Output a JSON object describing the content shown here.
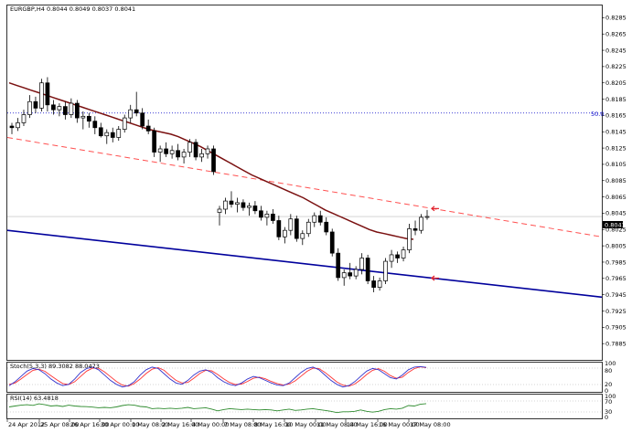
{
  "main_header": "EURGBP,H4  0.8044 0.8049 0.8037 0.8041",
  "stoch_header": "Stoch(5,3,3) 89.3082 88.0473",
  "rsi_header": "RSI(14) 63.4818",
  "fib_label": "50.0",
  "price_badge": "0.8041",
  "colors": {
    "candle": "#000000",
    "ma": "#7a1010",
    "channel_upper": "#ff5050",
    "channel_lower": "#00009c",
    "fib_line": "#0000c8",
    "arrows": "#e0202a",
    "stoch_main": "#3333cc",
    "stoch_signal": "#ff3333",
    "rsi": "#2e8b2e",
    "grid_dots": "#888888"
  },
  "chart_data": {
    "type": "candlestick",
    "symbol": "EURGBP",
    "timeframe": "H4",
    "ylim": [
      0.7865,
      0.83
    ],
    "y_ticks": [
      "0.8285",
      "0.8265",
      "0.8245",
      "0.8225",
      "0.8205",
      "0.8185",
      "0.8165",
      "0.8145",
      "0.8125",
      "0.8105",
      "0.8085",
      "0.8065",
      "0.8045",
      "0.8025",
      "0.8005",
      "0.7985",
      "0.7965",
      "0.7945",
      "0.7925",
      "0.7905",
      "0.7885"
    ],
    "x_ticks": [
      "24 Apr 2012",
      "25 Apr 08:00",
      "26 Apr 16:00",
      "30 Apr 00:00",
      "1 May 08:00",
      "2 May 16:00",
      "4 May 00:00",
      "7 May 08:00",
      "8 May 16:00",
      "10 May 00:00",
      "11 May 08:00",
      "14 May 16:00",
      "16 May 00:00",
      "17 May 08:00"
    ],
    "last_price": 0.8041,
    "fib_level": {
      "label": "50.0",
      "price": 0.8168
    },
    "candles": [
      [
        0.8152,
        0.8156,
        0.8142,
        0.815
      ],
      [
        0.815,
        0.8162,
        0.8146,
        0.8156
      ],
      [
        0.8156,
        0.8172,
        0.8152,
        0.8166
      ],
      [
        0.8166,
        0.819,
        0.8162,
        0.8182
      ],
      [
        0.8182,
        0.8188,
        0.8168,
        0.8174
      ],
      [
        0.8174,
        0.821,
        0.817,
        0.8205
      ],
      [
        0.8205,
        0.8212,
        0.817,
        0.8178
      ],
      [
        0.8178,
        0.8184,
        0.8166,
        0.8172
      ],
      [
        0.8172,
        0.818,
        0.8164,
        0.8176
      ],
      [
        0.8176,
        0.8182,
        0.816,
        0.8166
      ],
      [
        0.8166,
        0.8186,
        0.8162,
        0.818
      ],
      [
        0.818,
        0.8184,
        0.8156,
        0.8162
      ],
      [
        0.8162,
        0.817,
        0.8148,
        0.8164
      ],
      [
        0.8164,
        0.8168,
        0.815,
        0.8158
      ],
      [
        0.8158,
        0.8164,
        0.8142,
        0.815
      ],
      [
        0.815,
        0.8156,
        0.8138,
        0.814
      ],
      [
        0.814,
        0.8148,
        0.813,
        0.8144
      ],
      [
        0.8144,
        0.815,
        0.8132,
        0.8138
      ],
      [
        0.8138,
        0.8152,
        0.8134,
        0.8148
      ],
      [
        0.8148,
        0.8166,
        0.8144,
        0.8162
      ],
      [
        0.8162,
        0.8178,
        0.8156,
        0.8172
      ],
      [
        0.8172,
        0.8194,
        0.8164,
        0.8168
      ],
      [
        0.8168,
        0.8174,
        0.8148,
        0.8152
      ],
      [
        0.8152,
        0.816,
        0.8142,
        0.8146
      ],
      [
        0.8146,
        0.815,
        0.8114,
        0.812
      ],
      [
        0.812,
        0.8128,
        0.8108,
        0.8124
      ],
      [
        0.8124,
        0.8132,
        0.8114,
        0.8118
      ],
      [
        0.8118,
        0.8128,
        0.8112,
        0.8122
      ],
      [
        0.8122,
        0.813,
        0.811,
        0.8114
      ],
      [
        0.8114,
        0.8124,
        0.8106,
        0.812
      ],
      [
        0.812,
        0.8136,
        0.8114,
        0.8132
      ],
      [
        0.8132,
        0.8136,
        0.811,
        0.8114
      ],
      [
        0.8114,
        0.8124,
        0.8108,
        0.8118
      ],
      [
        0.8118,
        0.8128,
        0.8112,
        0.8124
      ],
      [
        0.8124,
        0.8128,
        0.8092,
        0.8096
      ],
      [
        0.8046,
        0.8054,
        0.803,
        0.805
      ],
      [
        0.805,
        0.8064,
        0.8044,
        0.806
      ],
      [
        0.806,
        0.8072,
        0.8052,
        0.8056
      ],
      [
        0.8056,
        0.8064,
        0.8046,
        0.8058
      ],
      [
        0.8058,
        0.8062,
        0.8048,
        0.8052
      ],
      [
        0.8052,
        0.8058,
        0.8042,
        0.8054
      ],
      [
        0.8054,
        0.806,
        0.8044,
        0.8048
      ],
      [
        0.8048,
        0.8054,
        0.8036,
        0.804
      ],
      [
        0.804,
        0.8048,
        0.803,
        0.8044
      ],
      [
        0.8044,
        0.805,
        0.8032,
        0.8036
      ],
      [
        0.8036,
        0.8042,
        0.8012,
        0.8016
      ],
      [
        0.8016,
        0.8028,
        0.8008,
        0.8024
      ],
      [
        0.8024,
        0.8044,
        0.8018,
        0.8038
      ],
      [
        0.8038,
        0.8042,
        0.801,
        0.8014
      ],
      [
        0.8014,
        0.8024,
        0.8006,
        0.802
      ],
      [
        0.802,
        0.8038,
        0.8016,
        0.8034
      ],
      [
        0.8034,
        0.8046,
        0.8028,
        0.8042
      ],
      [
        0.8042,
        0.8048,
        0.803,
        0.8034
      ],
      [
        0.8034,
        0.804,
        0.8018,
        0.8022
      ],
      [
        0.8022,
        0.8026,
        0.7992,
        0.7996
      ],
      [
        0.7996,
        0.8002,
        0.7962,
        0.7966
      ],
      [
        0.7966,
        0.7976,
        0.7956,
        0.7972
      ],
      [
        0.7972,
        0.7984,
        0.7964,
        0.7968
      ],
      [
        0.7968,
        0.798,
        0.7964,
        0.7976
      ],
      [
        0.7976,
        0.7996,
        0.797,
        0.799
      ],
      [
        0.799,
        0.7994,
        0.7958,
        0.7962
      ],
      [
        0.7962,
        0.7968,
        0.7948,
        0.7954
      ],
      [
        0.7954,
        0.7966,
        0.795,
        0.7962
      ],
      [
        0.7962,
        0.799,
        0.7958,
        0.7986
      ],
      [
        0.7986,
        0.8,
        0.7978,
        0.7994
      ],
      [
        0.7994,
        0.7998,
        0.7984,
        0.799
      ],
      [
        0.799,
        0.8004,
        0.7986,
        0.8
      ],
      [
        0.8,
        0.8032,
        0.7996,
        0.8026
      ],
      [
        0.8026,
        0.8036,
        0.8018,
        0.8024
      ],
      [
        0.8024,
        0.8044,
        0.802,
        0.804
      ],
      [
        0.804,
        0.8049,
        0.8037,
        0.8041
      ]
    ],
    "ma_line": [
      0.8205,
      0.8202,
      0.8199,
      0.8196,
      0.8193,
      0.819,
      0.8187,
      0.8184,
      0.8181,
      0.8178,
      0.8175,
      0.8172,
      0.8169,
      0.8166,
      0.8163,
      0.816,
      0.8157,
      0.8154,
      0.8151,
      0.8148,
      0.8146,
      0.8144,
      0.8142,
      0.8139,
      0.8135,
      0.8131,
      0.8127,
      0.8122,
      0.8117,
      0.8112,
      0.8107,
      0.8102,
      0.8097,
      0.8092,
      0.8088,
      0.8084,
      0.808,
      0.8076,
      0.8072,
      0.8068,
      0.8064,
      0.8059,
      0.8054,
      0.8049,
      0.8045,
      0.8041,
      0.8037,
      0.8033,
      0.8029,
      0.8025,
      0.8022,
      0.802,
      0.8018,
      0.8016,
      0.8014,
      0.8013
    ],
    "channel_upper": {
      "start": 0.8138,
      "end": 0.8016
    },
    "channel_lower": {
      "start": 0.8024,
      "end": 0.7942
    },
    "stoch": {
      "header": "Stoch(5,3,3)",
      "main_value": 89.3082,
      "signal_value": 88.0473,
      "levels": [
        80,
        20
      ],
      "y_ticks": [
        "100",
        "80",
        "20",
        "0"
      ],
      "main": [
        20,
        35,
        55,
        75,
        85,
        80,
        65,
        45,
        30,
        20,
        25,
        45,
        70,
        85,
        90,
        80,
        60,
        40,
        25,
        15,
        20,
        35,
        60,
        80,
        90,
        85,
        65,
        45,
        30,
        25,
        40,
        60,
        75,
        80,
        70,
        50,
        35,
        25,
        20,
        30,
        45,
        55,
        50,
        40,
        30,
        22,
        20,
        30,
        50,
        70,
        85,
        90,
        80,
        60,
        40,
        25,
        15,
        20,
        35,
        55,
        75,
        85,
        80,
        65,
        50,
        45,
        60,
        80,
        90,
        92,
        89
      ],
      "signal": [
        25,
        30,
        45,
        62,
        78,
        82,
        74,
        58,
        42,
        28,
        24,
        35,
        55,
        75,
        86,
        86,
        72,
        54,
        36,
        22,
        18,
        28,
        45,
        66,
        82,
        88,
        78,
        58,
        40,
        30,
        32,
        48,
        66,
        78,
        76,
        62,
        46,
        32,
        24,
        26,
        36,
        48,
        52,
        46,
        36,
        28,
        22,
        26,
        38,
        56,
        74,
        86,
        85,
        70,
        52,
        34,
        22,
        18,
        26,
        42,
        62,
        78,
        84,
        74,
        58,
        48,
        52,
        70,
        84,
        91,
        88
      ]
    },
    "rsi": {
      "header": "RSI(14)",
      "value": 63.4818,
      "y_ticks": [
        "100",
        "70",
        "30",
        "0"
      ],
      "values": [
        48,
        52,
        56,
        58,
        55,
        62,
        58,
        52,
        54,
        50,
        56,
        52,
        50,
        49,
        47,
        44,
        46,
        44,
        48,
        54,
        58,
        56,
        50,
        48,
        40,
        42,
        40,
        42,
        40,
        42,
        46,
        40,
        42,
        44,
        38,
        30,
        36,
        40,
        38,
        36,
        38,
        36,
        34,
        36,
        34,
        30,
        34,
        38,
        32,
        34,
        38,
        40,
        36,
        32,
        28,
        22,
        26,
        26,
        28,
        34,
        28,
        24,
        28,
        36,
        40,
        38,
        42,
        54,
        52,
        60,
        63
      ]
    }
  }
}
